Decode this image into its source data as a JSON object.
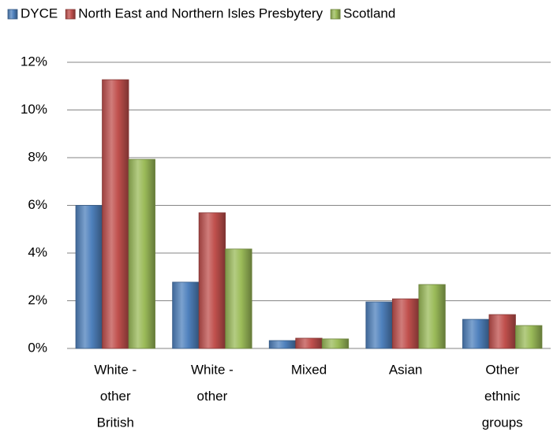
{
  "chart_data": {
    "type": "bar",
    "categories": [
      [
        "White -",
        "other",
        "British"
      ],
      [
        "White -",
        "other"
      ],
      [
        "Mixed"
      ],
      [
        "Asian"
      ],
      [
        "Other",
        "ethnic",
        "groups"
      ]
    ],
    "series": [
      {
        "name": "DYCE",
        "color": "#4f81bd",
        "values": [
          6.0,
          2.78,
          0.33,
          1.95,
          1.22
        ]
      },
      {
        "name": "North East and Northern Isles Presbytery",
        "color": "#c0504d",
        "values": [
          11.27,
          5.69,
          0.43,
          2.08,
          1.42
        ]
      },
      {
        "name": "Scotland",
        "color": "#9bbb59",
        "values": [
          7.93,
          4.17,
          0.4,
          2.68,
          0.96
        ]
      }
    ],
    "ylim": [
      0,
      12
    ],
    "yticks": [
      {
        "value": 0,
        "label": "0%"
      },
      {
        "value": 2,
        "label": "2%"
      },
      {
        "value": 4,
        "label": "4%"
      },
      {
        "value": 6,
        "label": "6%"
      },
      {
        "value": 8,
        "label": "8%"
      },
      {
        "value": 10,
        "label": "10%"
      },
      {
        "value": 12,
        "label": "12%"
      }
    ],
    "grid": true,
    "legend": "top"
  }
}
